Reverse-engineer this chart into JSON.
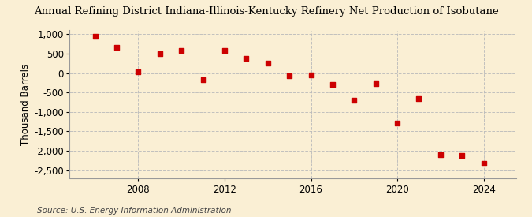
{
  "title": "Annual Refining District Indiana-Illinois-Kentucky Refinery Net Production of Isobutane",
  "ylabel": "Thousand Barrels",
  "source": "Source: U.S. Energy Information Administration",
  "background_color": "#faefd4",
  "years": [
    2006,
    2007,
    2008,
    2009,
    2010,
    2011,
    2012,
    2013,
    2014,
    2015,
    2016,
    2017,
    2018,
    2019,
    2020,
    2021,
    2022,
    2023,
    2024
  ],
  "values": [
    950,
    670,
    30,
    500,
    580,
    -160,
    590,
    380,
    250,
    -60,
    -50,
    -290,
    -690,
    -280,
    -1280,
    -660,
    -2100,
    -2130,
    -2320
  ],
  "marker_color": "#cc0000",
  "marker_size": 5,
  "ylim": [
    -2700,
    1100
  ],
  "yticks": [
    1000,
    500,
    0,
    -500,
    -1000,
    -1500,
    -2000,
    -2500
  ],
  "xticks": [
    2008,
    2012,
    2016,
    2020,
    2024
  ],
  "grid_color": "#bbbbbb",
  "title_fontsize": 9.5,
  "axis_fontsize": 8.5,
  "source_fontsize": 7.5
}
